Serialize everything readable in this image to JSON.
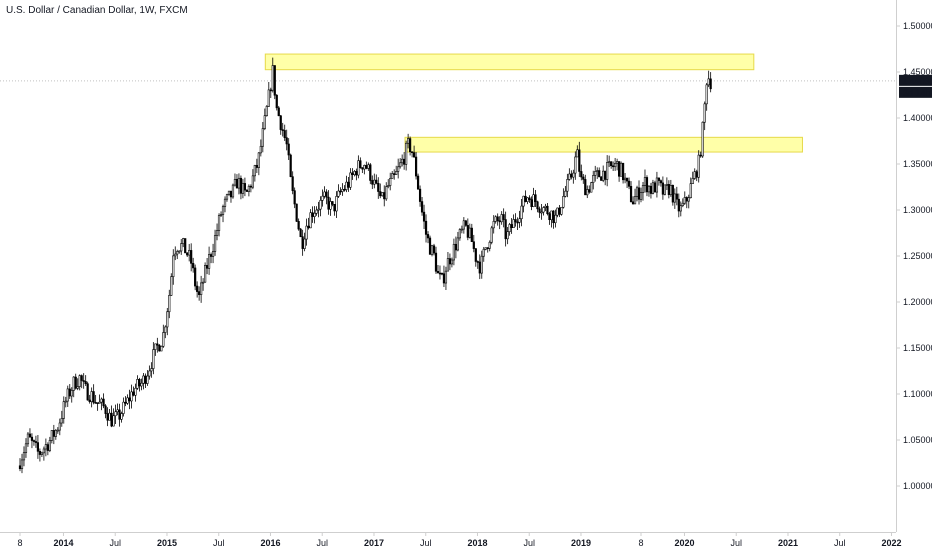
{
  "chart_data": {
    "type": "candlestick",
    "title": "U.S. Dollar / Canadian Dollar, 1W, FXCM",
    "xlabel": "",
    "ylabel": "",
    "ylim": [
      0.96,
      1.525
    ],
    "grid": false,
    "y_ticks": [
      "1.50000",
      "1.45000",
      "1.40000",
      "1.35000",
      "1.30000",
      "1.25000",
      "1.20000",
      "1.15000",
      "1.10000",
      "1.05000",
      "1.00000"
    ],
    "y_tick_values": [
      1.5,
      1.45,
      1.4,
      1.35,
      1.3,
      1.25,
      1.2,
      1.15,
      1.1,
      1.05,
      1.0
    ],
    "x_ticks": [
      {
        "label": "8",
        "t": 2013.58,
        "bold": false
      },
      {
        "label": "2014",
        "t": 2014.0,
        "bold": true
      },
      {
        "label": "Jul",
        "t": 2014.5,
        "bold": false
      },
      {
        "label": "2015",
        "t": 2015.0,
        "bold": true
      },
      {
        "label": "Jul",
        "t": 2015.5,
        "bold": false
      },
      {
        "label": "2016",
        "t": 2016.0,
        "bold": true
      },
      {
        "label": "Jul",
        "t": 2016.5,
        "bold": false
      },
      {
        "label": "2017",
        "t": 2017.0,
        "bold": true
      },
      {
        "label": "Jul",
        "t": 2017.5,
        "bold": false
      },
      {
        "label": "2018",
        "t": 2018.0,
        "bold": true
      },
      {
        "label": "Jul",
        "t": 2018.5,
        "bold": false
      },
      {
        "label": "2019",
        "t": 2019.0,
        "bold": true
      },
      {
        "label": "8",
        "t": 2019.58,
        "bold": false
      },
      {
        "label": "2020",
        "t": 2020.0,
        "bold": true
      },
      {
        "label": "Jul",
        "t": 2020.5,
        "bold": false
      },
      {
        "label": "2021",
        "t": 2021.0,
        "bold": true
      },
      {
        "label": "Jul",
        "t": 2021.5,
        "bold": false
      },
      {
        "label": "2022",
        "t": 2022.0,
        "bold": true
      }
    ],
    "last_price": {
      "value": 1.44038,
      "label": "1.44038",
      "countdown": "3d 14h"
    },
    "zones": [
      {
        "t_start": 2015.95,
        "t_end": 2020.67,
        "y_low": 1.4525,
        "y_high": 1.4695,
        "color": "#ffff99"
      },
      {
        "t_start": 2017.3,
        "t_end": 2021.14,
        "y_low": 1.363,
        "y_high": 1.379,
        "color": "#ffff99"
      }
    ],
    "price_path": [
      [
        2013.58,
        1.022
      ],
      [
        2013.68,
        1.052
      ],
      [
        2013.78,
        1.035
      ],
      [
        2013.88,
        1.048
      ],
      [
        2013.96,
        1.063
      ],
      [
        2014.05,
        1.095
      ],
      [
        2014.12,
        1.112
      ],
      [
        2014.18,
        1.118
      ],
      [
        2014.22,
        1.105
      ],
      [
        2014.28,
        1.1
      ],
      [
        2014.35,
        1.09
      ],
      [
        2014.42,
        1.085
      ],
      [
        2014.48,
        1.072
      ],
      [
        2014.55,
        1.075
      ],
      [
        2014.62,
        1.088
      ],
      [
        2014.7,
        1.105
      ],
      [
        2014.78,
        1.112
      ],
      [
        2014.85,
        1.13
      ],
      [
        2014.92,
        1.15
      ],
      [
        2014.98,
        1.162
      ],
      [
        2015.05,
        1.215
      ],
      [
        2015.08,
        1.255
      ],
      [
        2015.12,
        1.262
      ],
      [
        2015.18,
        1.26
      ],
      [
        2015.25,
        1.245
      ],
      [
        2015.3,
        1.215
      ],
      [
        2015.33,
        1.205
      ],
      [
        2015.38,
        1.228
      ],
      [
        2015.42,
        1.245
      ],
      [
        2015.48,
        1.268
      ],
      [
        2015.55,
        1.3
      ],
      [
        2015.6,
        1.31
      ],
      [
        2015.65,
        1.318
      ],
      [
        2015.7,
        1.332
      ],
      [
        2015.78,
        1.315
      ],
      [
        2015.85,
        1.335
      ],
      [
        2015.9,
        1.352
      ],
      [
        2015.95,
        1.385
      ],
      [
        2016.0,
        1.42
      ],
      [
        2016.04,
        1.452
      ],
      [
        2016.08,
        1.41
      ],
      [
        2016.12,
        1.395
      ],
      [
        2016.18,
        1.368
      ],
      [
        2016.22,
        1.325
      ],
      [
        2016.28,
        1.29
      ],
      [
        2016.32,
        1.262
      ],
      [
        2016.36,
        1.282
      ],
      [
        2016.42,
        1.298
      ],
      [
        2016.48,
        1.305
      ],
      [
        2016.55,
        1.312
      ],
      [
        2016.62,
        1.3
      ],
      [
        2016.7,
        1.32
      ],
      [
        2016.78,
        1.33
      ],
      [
        2016.85,
        1.345
      ],
      [
        2016.92,
        1.352
      ],
      [
        2016.98,
        1.34
      ],
      [
        2017.05,
        1.32
      ],
      [
        2017.1,
        1.31
      ],
      [
        2017.15,
        1.325
      ],
      [
        2017.22,
        1.335
      ],
      [
        2017.3,
        1.355
      ],
      [
        2017.35,
        1.37
      ],
      [
        2017.38,
        1.368
      ],
      [
        2017.42,
        1.345
      ],
      [
        2017.48,
        1.3
      ],
      [
        2017.52,
        1.275
      ],
      [
        2017.56,
        1.26
      ],
      [
        2017.6,
        1.25
      ],
      [
        2017.64,
        1.228
      ],
      [
        2017.68,
        1.222
      ],
      [
        2017.72,
        1.24
      ],
      [
        2017.78,
        1.255
      ],
      [
        2017.84,
        1.27
      ],
      [
        2017.9,
        1.282
      ],
      [
        2017.96,
        1.268
      ],
      [
        2018.0,
        1.25
      ],
      [
        2018.05,
        1.238
      ],
      [
        2018.1,
        1.26
      ],
      [
        2018.18,
        1.285
      ],
      [
        2018.25,
        1.29
      ],
      [
        2018.3,
        1.27
      ],
      [
        2018.35,
        1.282
      ],
      [
        2018.42,
        1.298
      ],
      [
        2018.5,
        1.315
      ],
      [
        2018.58,
        1.31
      ],
      [
        2018.65,
        1.302
      ],
      [
        2018.72,
        1.298
      ],
      [
        2018.78,
        1.29
      ],
      [
        2018.84,
        1.312
      ],
      [
        2018.92,
        1.335
      ],
      [
        2018.98,
        1.362
      ],
      [
        2019.02,
        1.332
      ],
      [
        2019.08,
        1.322
      ],
      [
        2019.15,
        1.335
      ],
      [
        2019.22,
        1.34
      ],
      [
        2019.3,
        1.345
      ],
      [
        2019.36,
        1.35
      ],
      [
        2019.42,
        1.34
      ],
      [
        2019.48,
        1.32
      ],
      [
        2019.52,
        1.31
      ],
      [
        2019.58,
        1.32
      ],
      [
        2019.64,
        1.33
      ],
      [
        2019.7,
        1.322
      ],
      [
        2019.76,
        1.328
      ],
      [
        2019.82,
        1.318
      ],
      [
        2019.88,
        1.325
      ],
      [
        2019.94,
        1.305
      ],
      [
        2019.98,
        1.3
      ],
      [
        2020.03,
        1.308
      ],
      [
        2020.08,
        1.325
      ],
      [
        2020.12,
        1.338
      ],
      [
        2020.16,
        1.352
      ],
      [
        2020.19,
        1.38
      ],
      [
        2020.22,
        1.42
      ],
      [
        2020.24,
        1.452
      ],
      [
        2020.26,
        1.44
      ]
    ]
  }
}
